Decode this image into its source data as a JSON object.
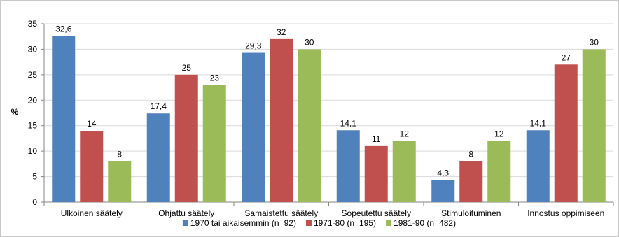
{
  "chart_data": {
    "type": "bar",
    "title": "",
    "xlabel": "",
    "ylabel": "%",
    "ylim": [
      0,
      35
    ],
    "yticks": [
      0,
      5,
      10,
      15,
      20,
      25,
      30,
      35
    ],
    "grid": true,
    "legend_position": "bottom",
    "categories": [
      "Ulkoinen säätely",
      "Ohjattu säätely",
      "Samaistettu säätely",
      "Sopeutettu säätely",
      "Stimuloituminen",
      "Innostus oppimiseen"
    ],
    "series": [
      {
        "name": "1970 tai aikaisemmin (n=92)",
        "color": "#4f81bd",
        "values": [
          32.6,
          17.4,
          29.3,
          14.1,
          4.3,
          14.1
        ],
        "labels": [
          "32,6",
          "17,4",
          "29,3",
          "14,1",
          "4,3",
          "14,1"
        ]
      },
      {
        "name": "1971-80 (n=195)",
        "color": "#c0504d",
        "values": [
          14,
          25,
          32,
          11,
          8,
          27
        ],
        "labels": [
          "14",
          "25",
          "32",
          "11",
          "8",
          "27"
        ]
      },
      {
        "name": "1981-90 (n=482)",
        "color": "#9bbb59",
        "values": [
          8,
          23,
          30,
          12,
          12,
          30
        ],
        "labels": [
          "8",
          "23",
          "30",
          "12",
          "12",
          "30"
        ]
      }
    ]
  }
}
